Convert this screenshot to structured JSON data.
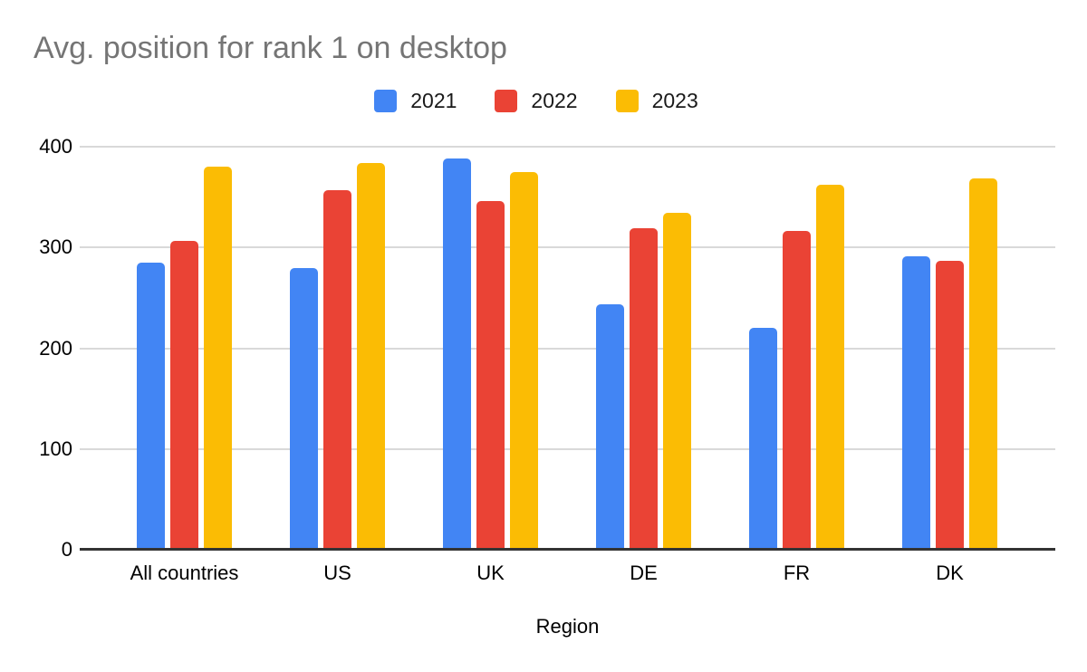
{
  "title": "Avg. position for rank 1 on desktop",
  "colors": {
    "title_text": "#757575",
    "grid": "#d9d9d9",
    "axis_line": "#333333",
    "label_text": "#000000",
    "background": "#ffffff"
  },
  "chart_data": {
    "type": "bar",
    "title": "Avg. position for rank 1 on desktop",
    "xlabel": "Region",
    "ylabel": "",
    "categories": [
      "All countries",
      "US",
      "UK",
      "DE",
      "FR",
      "DK"
    ],
    "series": [
      {
        "name": "2021",
        "color": "#4285F4",
        "values": [
          285,
          280,
          388,
          244,
          220,
          291
        ]
      },
      {
        "name": "2022",
        "color": "#EA4335",
        "values": [
          307,
          357,
          346,
          319,
          316,
          287
        ]
      },
      {
        "name": "2023",
        "color": "#FBBC04",
        "values": [
          380,
          384,
          375,
          334,
          362,
          369
        ]
      }
    ],
    "ylim": [
      0,
      400
    ],
    "yticks": [
      0,
      100,
      200,
      300,
      400
    ],
    "grid": true,
    "legend_position": "top"
  }
}
